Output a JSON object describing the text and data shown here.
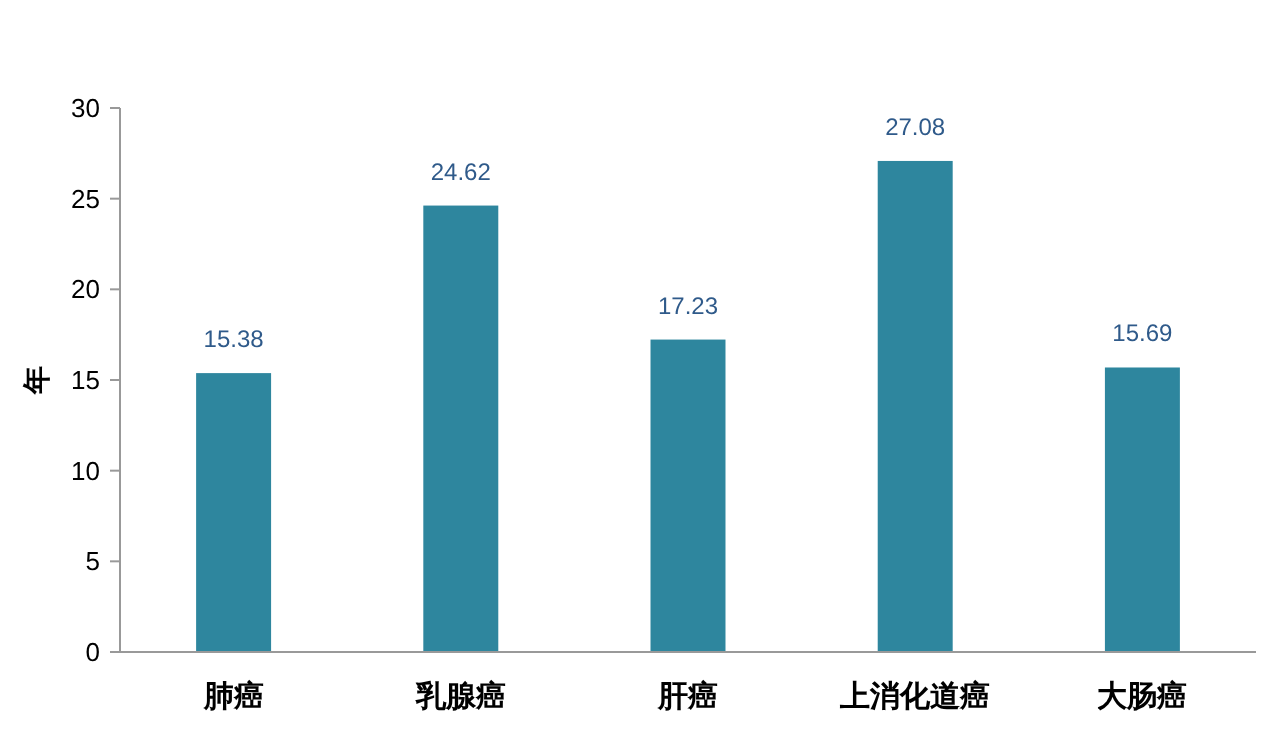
{
  "chart_data": {
    "type": "bar",
    "ylabel": "年",
    "categories": [
      "肺癌",
      "乳腺癌",
      "肝癌",
      "上消化道癌",
      "大肠癌"
    ],
    "values": [
      15.38,
      24.62,
      17.23,
      27.08,
      15.69
    ],
    "color": "#2e869e",
    "ylim": [
      0,
      30
    ],
    "yticks": [
      0,
      5,
      10,
      15,
      20,
      25,
      30
    ],
    "data_labels": true,
    "grid": false
  }
}
